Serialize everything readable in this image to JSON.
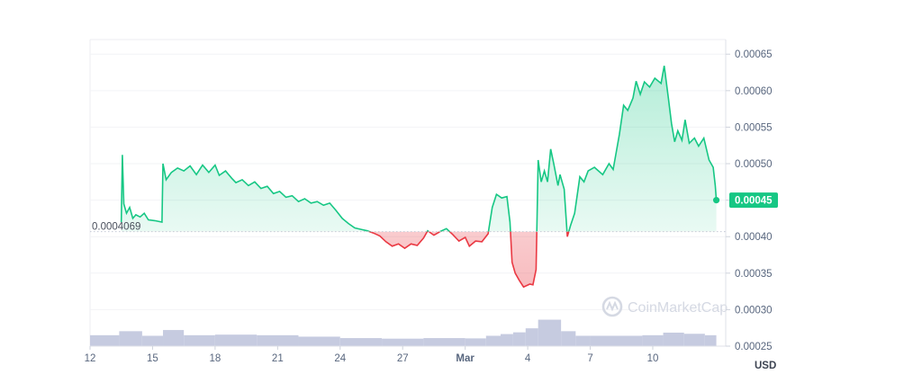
{
  "chart_data": {
    "type": "area",
    "title": "",
    "xlabel": "",
    "ylabel": "",
    "y_unit_label": "USD",
    "ylim": [
      0.00025,
      0.00067
    ],
    "y_ticks": [
      {
        "value": 0.00025,
        "label": "0.00025"
      },
      {
        "value": 0.0003,
        "label": "0.00030"
      },
      {
        "value": 0.00035,
        "label": "0.00035"
      },
      {
        "value": 0.0004,
        "label": "0.00040"
      },
      {
        "value": 0.00045,
        "label": "0.00045"
      },
      {
        "value": 0.0005,
        "label": "0.00050"
      },
      {
        "value": 0.00055,
        "label": "0.00055"
      },
      {
        "value": 0.0006,
        "label": "0.00060"
      },
      {
        "value": 0.00065,
        "label": "0.00065"
      }
    ],
    "xlim": [
      0,
      30.5
    ],
    "x_ticks": [
      {
        "value": 0,
        "label": "12",
        "bold": false
      },
      {
        "value": 3,
        "label": "15",
        "bold": false
      },
      {
        "value": 6,
        "label": "18",
        "bold": false
      },
      {
        "value": 9,
        "label": "21",
        "bold": false
      },
      {
        "value": 12,
        "label": "24",
        "bold": false
      },
      {
        "value": 15,
        "label": "27",
        "bold": false
      },
      {
        "value": 18,
        "label": "Mar",
        "bold": true
      },
      {
        "value": 21,
        "label": "4",
        "bold": false
      },
      {
        "value": 24,
        "label": "7",
        "bold": false
      },
      {
        "value": 27,
        "label": "10",
        "bold": false
      }
    ],
    "reference_value": 0.0004069,
    "reference_label": "0.0004069",
    "current_value": 0.00045,
    "current_label": "0.00045",
    "colors": {
      "up": "#16c784",
      "down": "#ea3943",
      "volume": "#c6cbe0",
      "grid": "#f2f3f6",
      "axis_text": "#58667e"
    },
    "watermark": "CoinMarketCap",
    "series": [
      {
        "values": [
          [
            1.5,
            0.00042
          ],
          [
            1.55,
            0.000512
          ],
          [
            1.62,
            0.000445
          ],
          [
            1.75,
            0.000432
          ],
          [
            1.9,
            0.00044
          ],
          [
            2.05,
            0.000425
          ],
          [
            2.2,
            0.00043
          ],
          [
            2.4,
            0.000427
          ],
          [
            2.6,
            0.000432
          ],
          [
            2.8,
            0.000423
          ],
          [
            3.1,
            0.000422
          ],
          [
            3.45,
            0.00042
          ],
          [
            3.5,
            0.0005
          ],
          [
            3.65,
            0.000478
          ],
          [
            3.9,
            0.000488
          ],
          [
            4.2,
            0.000494
          ],
          [
            4.5,
            0.00049
          ],
          [
            4.8,
            0.000497
          ],
          [
            5.1,
            0.000485
          ],
          [
            5.4,
            0.000498
          ],
          [
            5.7,
            0.000488
          ],
          [
            6.0,
            0.000498
          ],
          [
            6.2,
            0.000484
          ],
          [
            6.5,
            0.00049
          ],
          [
            6.8,
            0.00048
          ],
          [
            7.0,
            0.000474
          ],
          [
            7.3,
            0.000478
          ],
          [
            7.6,
            0.00047
          ],
          [
            7.9,
            0.000475
          ],
          [
            8.2,
            0.000466
          ],
          [
            8.5,
            0.000469
          ],
          [
            8.8,
            0.000459
          ],
          [
            9.1,
            0.000462
          ],
          [
            9.4,
            0.000454
          ],
          [
            9.7,
            0.000456
          ],
          [
            10.0,
            0.000448
          ],
          [
            10.3,
            0.000452
          ],
          [
            10.6,
            0.000446
          ],
          [
            10.9,
            0.000448
          ],
          [
            11.2,
            0.000443
          ],
          [
            11.5,
            0.000446
          ],
          [
            11.8,
            0.000436
          ],
          [
            12.1,
            0.000425
          ],
          [
            12.4,
            0.000418
          ],
          [
            12.7,
            0.000412
          ],
          [
            13.0,
            0.00041
          ],
          [
            13.3,
            0.000408
          ],
          [
            13.6,
            0.000405
          ],
          [
            13.9,
            0.000401
          ],
          [
            14.2,
            0.000393
          ],
          [
            14.5,
            0.000387
          ],
          [
            14.8,
            0.00039
          ],
          [
            15.1,
            0.000384
          ],
          [
            15.4,
            0.00039
          ],
          [
            15.7,
            0.000388
          ],
          [
            16.0,
            0.000398
          ],
          [
            16.2,
            0.000408
          ],
          [
            16.5,
            0.000402
          ],
          [
            16.8,
            0.000407
          ],
          [
            17.1,
            0.000411
          ],
          [
            17.4,
            0.000403
          ],
          [
            17.7,
            0.000394
          ],
          [
            18.0,
            0.000399
          ],
          [
            18.2,
            0.000387
          ],
          [
            18.5,
            0.000394
          ],
          [
            18.8,
            0.000393
          ],
          [
            19.1,
            0.000404
          ],
          [
            19.3,
            0.00044
          ],
          [
            19.5,
            0.000458
          ],
          [
            19.75,
            0.000453
          ],
          [
            20.0,
            0.000455
          ],
          [
            20.15,
            0.00042
          ],
          [
            20.25,
            0.000365
          ],
          [
            20.4,
            0.00035
          ],
          [
            20.6,
            0.00034
          ],
          [
            20.8,
            0.000331
          ],
          [
            21.1,
            0.000335
          ],
          [
            21.25,
            0.000334
          ],
          [
            21.4,
            0.000355
          ],
          [
            21.5,
            0.000505
          ],
          [
            21.65,
            0.000475
          ],
          [
            21.8,
            0.00049
          ],
          [
            21.95,
            0.000475
          ],
          [
            22.1,
            0.00052
          ],
          [
            22.25,
            0.0005
          ],
          [
            22.45,
            0.00047
          ],
          [
            22.55,
            0.000485
          ],
          [
            22.75,
            0.000465
          ],
          [
            22.9,
            0.0004
          ],
          [
            23.05,
            0.000415
          ],
          [
            23.25,
            0.000432
          ],
          [
            23.5,
            0.000482
          ],
          [
            23.7,
            0.000475
          ],
          [
            23.9,
            0.00049
          ],
          [
            24.2,
            0.000495
          ],
          [
            24.6,
            0.000485
          ],
          [
            24.9,
            0.0005
          ],
          [
            25.1,
            0.000492
          ],
          [
            25.4,
            0.00054
          ],
          [
            25.6,
            0.00058
          ],
          [
            25.8,
            0.000573
          ],
          [
            26.05,
            0.00059
          ],
          [
            26.2,
            0.000613
          ],
          [
            26.4,
            0.000595
          ],
          [
            26.6,
            0.000612
          ],
          [
            26.85,
            0.000605
          ],
          [
            27.1,
            0.000617
          ],
          [
            27.4,
            0.00061
          ],
          [
            27.55,
            0.000634
          ],
          [
            27.75,
            0.00059
          ],
          [
            27.9,
            0.000555
          ],
          [
            28.05,
            0.00053
          ],
          [
            28.2,
            0.000545
          ],
          [
            28.4,
            0.000532
          ],
          [
            28.55,
            0.00056
          ],
          [
            28.75,
            0.000528
          ],
          [
            29.0,
            0.000535
          ],
          [
            29.2,
            0.000524
          ],
          [
            29.45,
            0.000535
          ],
          [
            29.7,
            0.000505
          ],
          [
            29.9,
            0.000495
          ],
          [
            30.0,
            0.00047
          ],
          [
            30.05,
            0.00045
          ]
        ]
      }
    ],
    "volume": [
      {
        "x0": 0,
        "x1": 1.4,
        "level": 0.38
      },
      {
        "x0": 1.4,
        "x1": 2.5,
        "level": 0.52
      },
      {
        "x0": 2.5,
        "x1": 3.5,
        "level": 0.36
      },
      {
        "x0": 3.5,
        "x1": 4.5,
        "level": 0.56
      },
      {
        "x0": 4.5,
        "x1": 6.0,
        "level": 0.38
      },
      {
        "x0": 6.0,
        "x1": 8.0,
        "level": 0.4
      },
      {
        "x0": 8.0,
        "x1": 10.0,
        "level": 0.38
      },
      {
        "x0": 10.0,
        "x1": 12.0,
        "level": 0.33
      },
      {
        "x0": 12.0,
        "x1": 14.0,
        "level": 0.28
      },
      {
        "x0": 14.0,
        "x1": 16.0,
        "level": 0.26
      },
      {
        "x0": 16.0,
        "x1": 18.0,
        "level": 0.28
      },
      {
        "x0": 18.0,
        "x1": 19.0,
        "level": 0.27
      },
      {
        "x0": 19.0,
        "x1": 19.7,
        "level": 0.36
      },
      {
        "x0": 19.7,
        "x1": 20.3,
        "level": 0.42
      },
      {
        "x0": 20.3,
        "x1": 20.9,
        "level": 0.48
      },
      {
        "x0": 20.9,
        "x1": 21.5,
        "level": 0.62
      },
      {
        "x0": 21.5,
        "x1": 22.6,
        "level": 0.92
      },
      {
        "x0": 22.6,
        "x1": 23.3,
        "level": 0.52
      },
      {
        "x0": 23.3,
        "x1": 24.0,
        "level": 0.36
      },
      {
        "x0": 24.0,
        "x1": 26.5,
        "level": 0.36
      },
      {
        "x0": 26.5,
        "x1": 27.5,
        "level": 0.38
      },
      {
        "x0": 27.5,
        "x1": 28.5,
        "level": 0.47
      },
      {
        "x0": 28.5,
        "x1": 29.5,
        "level": 0.43
      },
      {
        "x0": 29.5,
        "x1": 30.05,
        "level": 0.38
      }
    ]
  }
}
